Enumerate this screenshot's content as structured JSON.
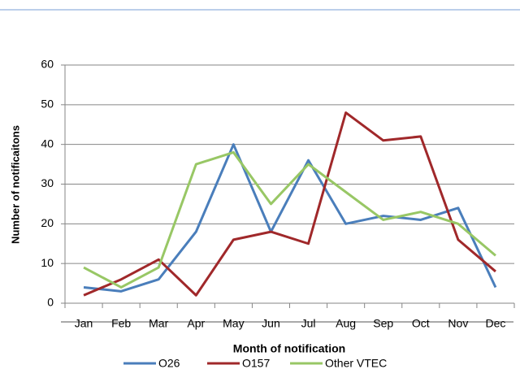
{
  "chart_data": {
    "type": "line",
    "xlabel": "Month of notification",
    "ylabel": "Number of notificaitons",
    "categories": [
      "Jan",
      "Feb",
      "Mar",
      "Apr",
      "May",
      "Jun",
      "Jul",
      "Aug",
      "Sep",
      "Oct",
      "Nov",
      "Dec"
    ],
    "series": [
      {
        "name": "O26",
        "color": "#4a7ebb",
        "values": [
          4,
          3,
          6,
          18,
          40,
          18,
          36,
          20,
          22,
          21,
          24,
          4
        ]
      },
      {
        "name": "O157",
        "color": "#a0282a",
        "values": [
          2,
          6,
          11,
          2,
          16,
          18,
          15,
          48,
          41,
          42,
          16,
          8
        ]
      },
      {
        "name": "Other VTEC",
        "color": "#98c765",
        "values": [
          9,
          4,
          9,
          35,
          38,
          25,
          35,
          28,
          21,
          23,
          20,
          12
        ]
      }
    ],
    "ylim": [
      0,
      60
    ],
    "yticks": [
      0,
      10,
      20,
      30,
      40,
      50,
      60
    ],
    "grid": true
  }
}
